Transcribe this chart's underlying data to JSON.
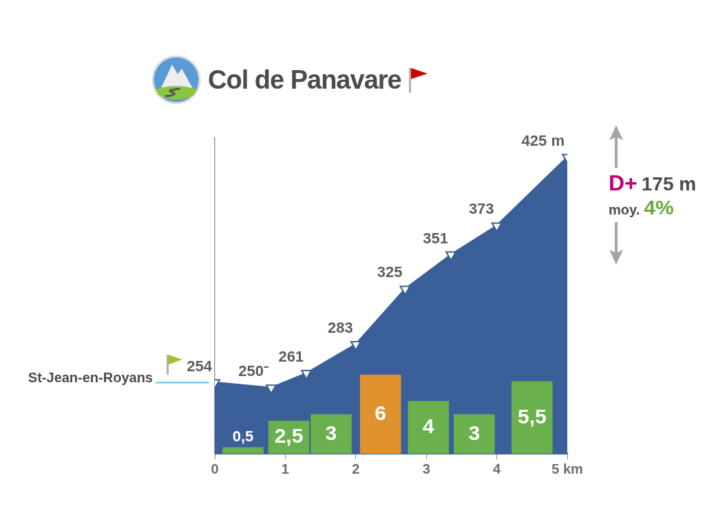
{
  "chart_data": {
    "type": "area",
    "title": "Col de Panavare",
    "series": [
      {
        "color": "#3b5f98",
        "x": [
          0,
          0.8,
          1.3,
          2,
          2.7,
          3.35,
          4,
          5
        ],
        "values": [
          254,
          250,
          261,
          283,
          325,
          351,
          373,
          425
        ],
        "value_labels": [
          "254",
          "250⁻",
          "261",
          "283",
          "325",
          "351",
          "373",
          "425 m"
        ]
      },
      {
        "type": "bar",
        "axis": "y2",
        "colors": [
          "#6ab04c",
          "#6ab04c",
          "#6ab04c",
          "#e0922f",
          "#6ab04c",
          "#6ab04c",
          "#6ab04c"
        ],
        "x": [
          0.4,
          1.05,
          1.65,
          2.35,
          3.03,
          3.68,
          4.5
        ],
        "values": [
          0.5,
          2.5,
          3,
          6,
          4,
          3,
          5.5
        ],
        "value_labels": [
          "0,5",
          "2,5",
          "3",
          "6",
          "4",
          "3",
          "5,5"
        ]
      }
    ],
    "xlim": [
      0,
      5
    ],
    "xticks": [
      0,
      1,
      2,
      3,
      4,
      {
        "value": 5,
        "label": "5 km"
      }
    ],
    "ylim": [
      200,
      440
    ],
    "tick_labels": "x",
    "marker": "triangle",
    "annotations": [
      {
        "text": "St-Jean-en-Royans",
        "x": 0,
        "y": 254
      },
      "D+",
      "175 m",
      "moy.",
      "4%"
    ]
  }
}
